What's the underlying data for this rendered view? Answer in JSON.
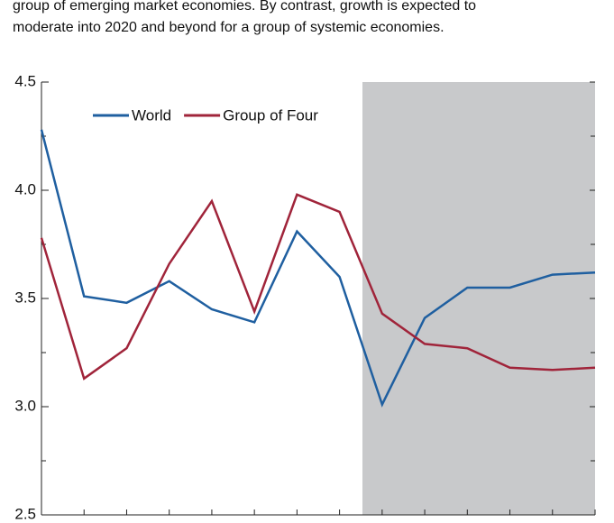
{
  "chart_data": {
    "type": "line",
    "caption_lines": [
      "group of emerging market economies. By contrast, growth is expected to",
      "moderate into 2020 and beyond for a group of systemic economies."
    ],
    "categories": [
      null,
      null,
      null,
      null,
      null,
      null,
      null,
      null,
      null,
      null,
      null,
      null,
      null,
      null
    ],
    "series": [
      {
        "name": "World",
        "color": "#1f5fa0",
        "values": [
          4.28,
          3.51,
          3.48,
          3.58,
          3.45,
          3.39,
          3.81,
          3.6,
          3.01,
          3.41,
          3.55,
          3.55,
          3.61,
          3.62
        ]
      },
      {
        "name": "Group of Four",
        "color": "#a0243a",
        "values": [
          3.78,
          3.13,
          3.27,
          3.66,
          3.95,
          3.44,
          3.98,
          3.9,
          3.43,
          3.29,
          3.27,
          3.18,
          3.17,
          3.18
        ]
      }
    ],
    "ylim": [
      2.5,
      4.5
    ],
    "yticks": [
      {
        "value": 2.5,
        "label": "2.5"
      },
      {
        "value": 3,
        "label": "3.0"
      },
      {
        "value": 3.5,
        "label": "3.5"
      },
      {
        "value": 4,
        "label": "4.0"
      },
      {
        "value": 4.5,
        "label": "4.5"
      }
    ],
    "yticks_minor": [
      2.75,
      3.25,
      3.75,
      4.25
    ]
  }
}
